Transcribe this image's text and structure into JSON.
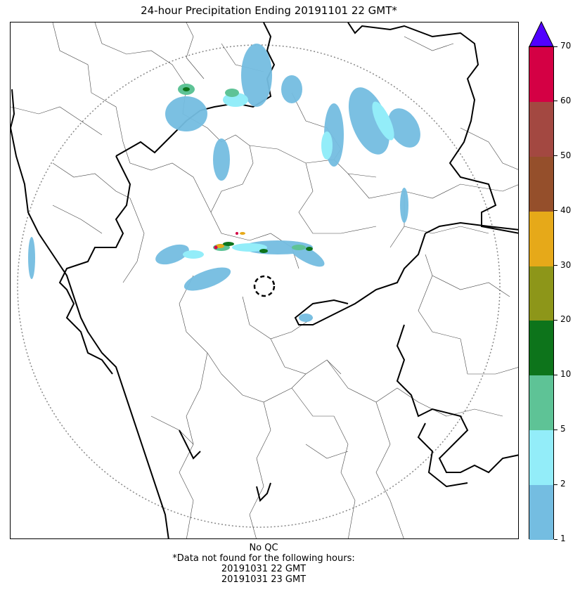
{
  "title": "24-hour Precipitation Ending 20191101 22 GMT*",
  "colorbar": {
    "ticks": [
      "1",
      "2",
      "5",
      "10",
      "20",
      "30",
      "40",
      "50",
      "60",
      "70"
    ],
    "colors": [
      "#74bde1",
      "#93edf9",
      "#5ec396",
      "#0d741b",
      "#8d9619",
      "#e6a919",
      "#954f2b",
      "#a34841",
      "#d40044"
    ],
    "extend_color": "#5100ff"
  },
  "footer": {
    "qc": "No QC",
    "note": "*Data not found for the following hours:",
    "missing": [
      "20191031 22 GMT",
      "20191031 23 GMT"
    ]
  }
}
